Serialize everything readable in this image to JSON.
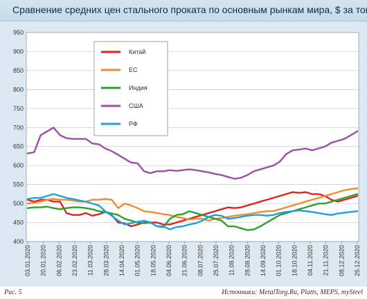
{
  "title": "Сравнение средних цен стального проката по основным рынкам мира, $ за тонну",
  "footer": {
    "figure_label": "Рис. 5",
    "source": "Источники: MetalTorg.Ru, Platts, MEPS, mySteel"
  },
  "chart_data": {
    "type": "line",
    "title": "Сравнение средних цен стального проката по основным рынкам мира, $ за тонну",
    "ylim": [
      400,
      950
    ],
    "yticks": [
      400,
      450,
      500,
      550,
      600,
      650,
      700,
      750,
      800,
      850,
      900,
      950
    ],
    "xticks": [
      "03.01.2020",
      "20.01.2020",
      "06.02.2020",
      "23.02.2020",
      "11.03.2020",
      "28.03.2020",
      "14.04.2020",
      "01.05.2020",
      "18.05.2020",
      "04.06.2020",
      "21.06.2020",
      "08.07.2020",
      "25.07.2020",
      "11.08.2020",
      "28.08.2020",
      "14.09.2020",
      "01.10.2020",
      "18.10.2020",
      "04.11.2020",
      "21.11.2020",
      "08.12.2020",
      "25.12.2020"
    ],
    "grid": true,
    "legend_position": "top-left",
    "n_points": 52,
    "series": [
      {
        "name": "Китай",
        "color": "#e2201c",
        "values": [
          510,
          505,
          510,
          510,
          505,
          505,
          475,
          470,
          470,
          475,
          468,
          472,
          478,
          470,
          450,
          448,
          440,
          445,
          450,
          450,
          450,
          445,
          445,
          450,
          455,
          460,
          465,
          470,
          475,
          480,
          485,
          490,
          488,
          490,
          495,
          500,
          505,
          510,
          515,
          520,
          525,
          530,
          528,
          530,
          525,
          525,
          520,
          510,
          505,
          510,
          515,
          520
        ]
      },
      {
        "name": "ЕС",
        "color": "#f28a2e",
        "values": [
          500,
          502,
          505,
          510,
          512,
          510,
          510,
          508,
          505,
          505,
          510,
          510,
          512,
          510,
          488,
          500,
          495,
          488,
          480,
          478,
          475,
          472,
          470,
          465,
          462,
          458,
          460,
          460,
          455,
          460,
          462,
          465,
          468,
          470,
          472,
          475,
          478,
          480,
          480,
          485,
          490,
          495,
          500,
          505,
          510,
          515,
          520,
          525,
          530,
          535,
          538,
          540
        ]
      },
      {
        "name": "Индия",
        "color": "#2ca02c",
        "values": [
          488,
          490,
          490,
          492,
          488,
          485,
          488,
          490,
          490,
          488,
          485,
          480,
          478,
          474,
          470,
          460,
          455,
          450,
          448,
          450,
          440,
          438,
          460,
          470,
          472,
          480,
          475,
          470,
          465,
          460,
          455,
          440,
          440,
          435,
          430,
          432,
          440,
          450,
          460,
          470,
          475,
          480,
          485,
          490,
          495,
          500,
          500,
          505,
          510,
          515,
          520,
          525
        ]
      },
      {
        "name": "США",
        "color": "#9b4fa6",
        "values": [
          632,
          635,
          680,
          690,
          700,
          680,
          672,
          670,
          670,
          670,
          658,
          656,
          645,
          638,
          628,
          618,
          608,
          606,
          585,
          580,
          585,
          585,
          588,
          586,
          588,
          590,
          588,
          585,
          582,
          578,
          575,
          570,
          565,
          568,
          575,
          585,
          590,
          595,
          600,
          610,
          630,
          640,
          642,
          645,
          640,
          645,
          650,
          660,
          665,
          670,
          680,
          690
        ]
      },
      {
        "name": "РФ",
        "color": "#1ba0e2",
        "values": [
          512,
          515,
          515,
          520,
          525,
          520,
          515,
          512,
          508,
          505,
          500,
          495,
          480,
          468,
          455,
          445,
          448,
          452,
          455,
          450,
          440,
          440,
          432,
          438,
          440,
          445,
          448,
          455,
          465,
          470,
          468,
          460,
          462,
          465,
          468,
          470,
          470,
          468,
          470,
          475,
          478,
          480,
          482,
          480,
          478,
          475,
          472,
          470,
          474,
          476,
          478,
          480
        ]
      }
    ]
  }
}
